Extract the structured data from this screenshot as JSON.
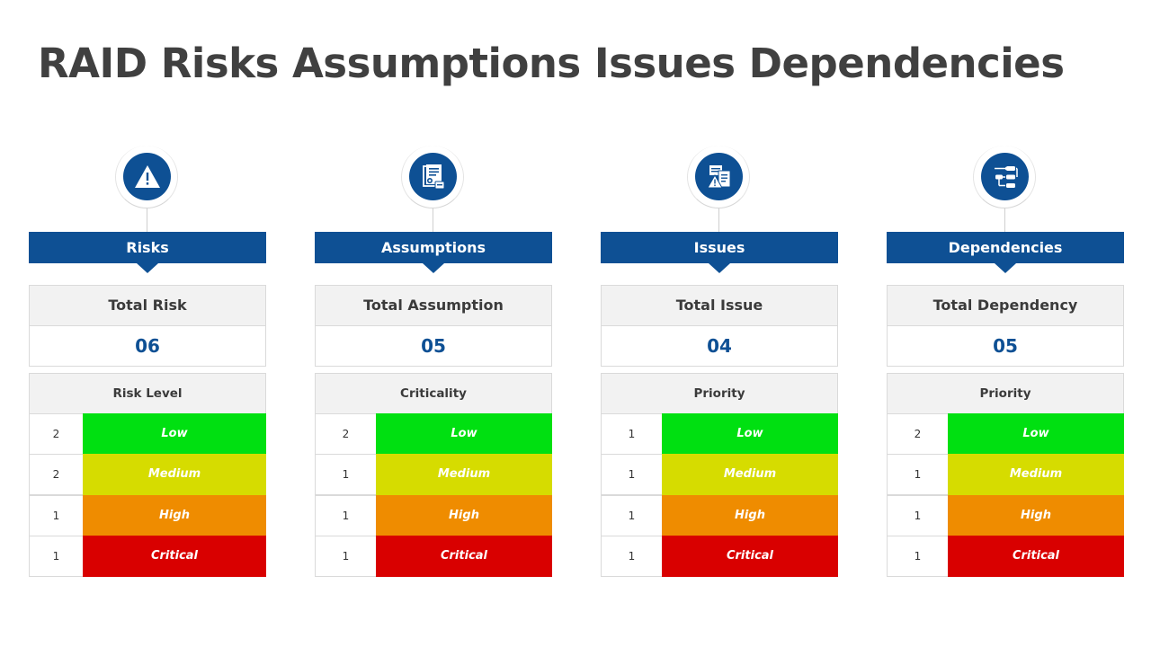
{
  "title": "RAID Risks Assumptions Issues Dependencies",
  "colors": {
    "primary": "#0e5094",
    "low": "#00e011",
    "medium": "#d6dc00",
    "high": "#ef8c00",
    "critical": "#d90000"
  },
  "columns": [
    {
      "icon": "warning-triangle-icon",
      "header": "Risks",
      "total_label": "Total Risk",
      "total_value": "06",
      "level_header": "Risk Level",
      "rows": [
        {
          "count": "2",
          "level": "Low"
        },
        {
          "count": "2",
          "level": "Medium"
        },
        {
          "count": "1",
          "level": "High"
        },
        {
          "count": "1",
          "level": "Critical"
        }
      ]
    },
    {
      "icon": "document-certificate-icon",
      "header": "Assumptions",
      "total_label": "Total Assumption",
      "total_value": "05",
      "level_header": "Criticality",
      "rows": [
        {
          "count": "2",
          "level": "Low"
        },
        {
          "count": "1",
          "level": "Medium"
        },
        {
          "count": "1",
          "level": "High"
        },
        {
          "count": "1",
          "level": "Critical"
        }
      ]
    },
    {
      "icon": "issue-document-warning-icon",
      "header": "Issues",
      "total_label": "Total Issue",
      "total_value": "04",
      "level_header": "Priority",
      "rows": [
        {
          "count": "1",
          "level": "Low"
        },
        {
          "count": "1",
          "level": "Medium"
        },
        {
          "count": "1",
          "level": "High"
        },
        {
          "count": "1",
          "level": "Critical"
        }
      ]
    },
    {
      "icon": "flowchart-dependency-icon",
      "header": "Dependencies",
      "total_label": "Total Dependency",
      "total_value": "05",
      "level_header": "Priority",
      "rows": [
        {
          "count": "2",
          "level": "Low"
        },
        {
          "count": "1",
          "level": "Medium"
        },
        {
          "count": "1",
          "level": "High"
        },
        {
          "count": "1",
          "level": "Critical"
        }
      ]
    }
  ]
}
